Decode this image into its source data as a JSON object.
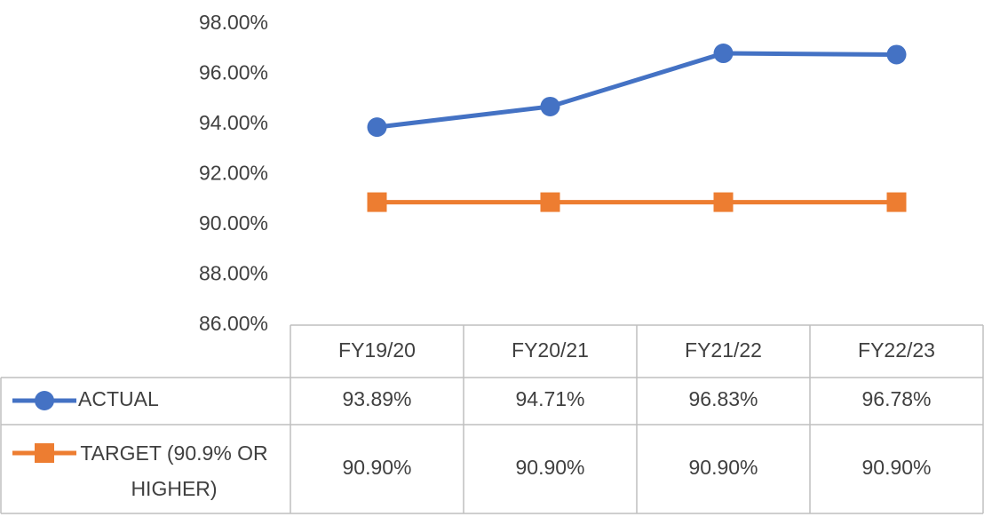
{
  "chart_data": {
    "type": "line",
    "categories": [
      "FY19/20",
      "FY20/21",
      "FY21/22",
      "FY22/23"
    ],
    "series": [
      {
        "name": "ACTUAL",
        "color": "#4472c4",
        "values": [
          93.89,
          94.71,
          96.83,
          96.78
        ],
        "value_labels": [
          "93.89%",
          "94.71%",
          "96.83%",
          "96.78%"
        ]
      },
      {
        "name": "TARGET (90.9% OR HIGHER)",
        "color": "#ed7d31",
        "values": [
          90.9,
          90.9,
          90.9,
          90.9
        ],
        "value_labels": [
          "90.90%",
          "90.90%",
          "90.90%",
          "90.90%"
        ]
      }
    ],
    "ylim": [
      86,
      98
    ],
    "yticks": [
      {
        "value": 86,
        "label": "86.00%"
      },
      {
        "value": 88,
        "label": "88.00%"
      },
      {
        "value": 90,
        "label": "90.00%"
      },
      {
        "value": 92,
        "label": "92.00%"
      },
      {
        "value": 94,
        "label": "94.00%"
      },
      {
        "value": 96,
        "label": "96.00%"
      },
      {
        "value": 98,
        "label": "98.00%"
      }
    ],
    "grid": false
  }
}
